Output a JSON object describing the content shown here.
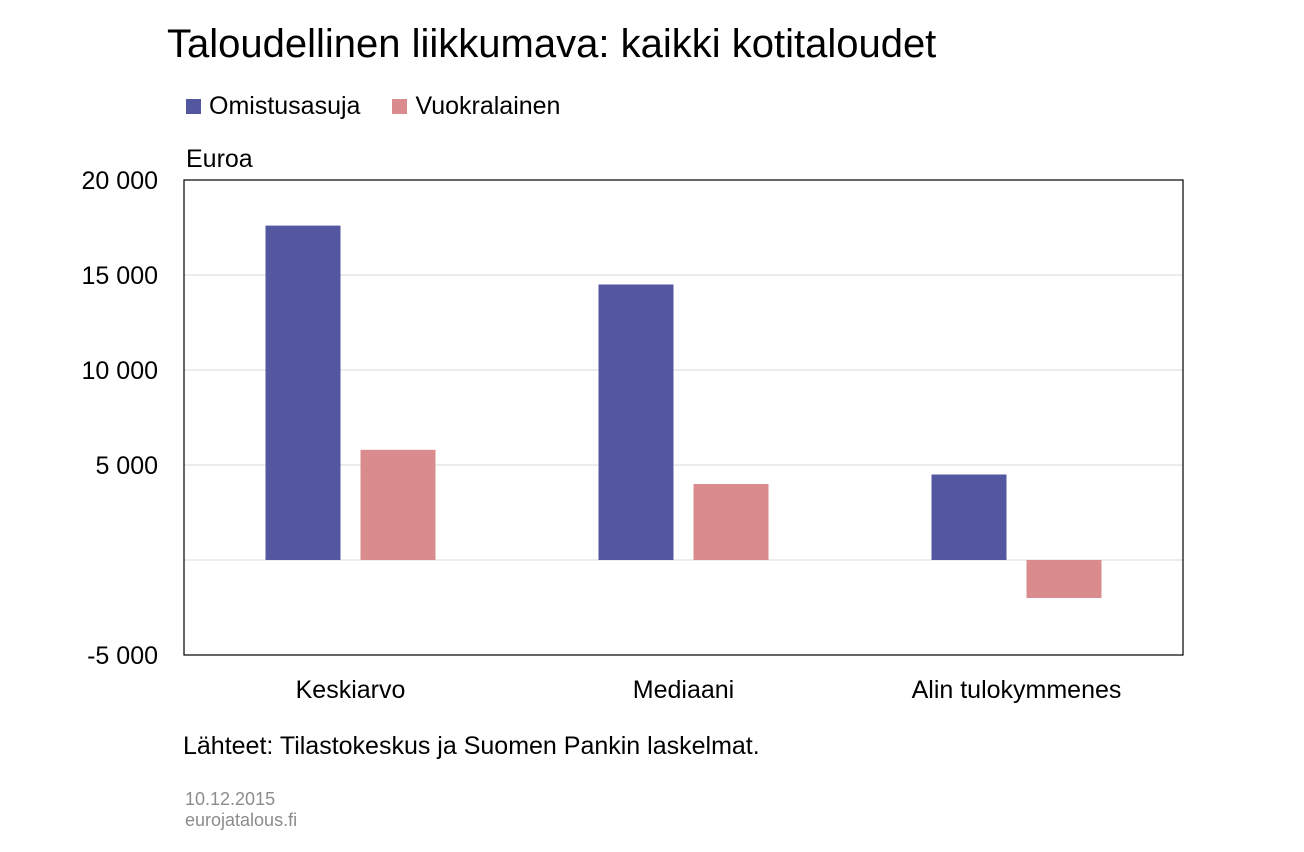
{
  "title": "Taloudellinen liikkumava: kaikki kotitaloudet",
  "unit_label": "Euroa",
  "source": "Lähteet: Tilastokeskus ja Suomen Pankin laskelmat.",
  "date": "10.12.2015",
  "site": "eurojatalous.fi",
  "colors": {
    "series1": "#52579f",
    "series2": "#d98b8e",
    "grid": "#d9d9d9",
    "axis": "#000000"
  },
  "chart_data": {
    "type": "bar",
    "categories": [
      "Keskiarvo",
      "Mediaani",
      "Alin tulokymmenes"
    ],
    "series": [
      {
        "name": "Omistusasuja",
        "values": [
          17600,
          14500,
          4500
        ]
      },
      {
        "name": "Vuokralainen",
        "values": [
          5800,
          4000,
          -2000
        ]
      }
    ],
    "ylim": [
      -5000,
      20000
    ],
    "yticks": [
      -5000,
      0,
      5000,
      10000,
      15000,
      20000
    ],
    "ytick_labels": [
      "-5 000",
      "",
      "5 000",
      "10 000",
      "15 000",
      "20 000"
    ],
    "ylabel": "Euroa",
    "grid": true,
    "legend_position": "top-left"
  }
}
